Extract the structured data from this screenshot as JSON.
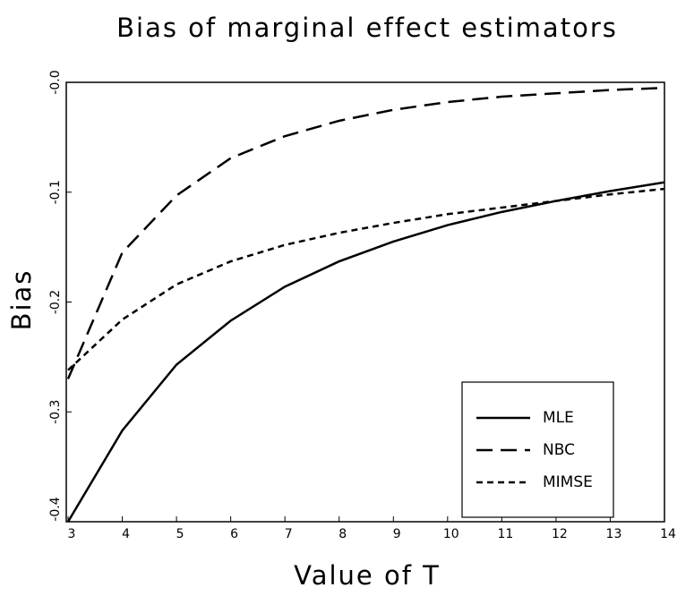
{
  "chart_data": {
    "type": "line",
    "title": "Bias of marginal effect estimators",
    "x_label": "Value of T",
    "y_label": "Bias",
    "x": [
      3,
      4,
      5,
      6,
      7,
      8,
      9,
      10,
      11,
      12,
      13,
      14
    ],
    "series": [
      {
        "name": "MLE",
        "color": "#000000",
        "linestyle": "solid",
        "values": [
          -0.4,
          -0.317,
          -0.257,
          -0.217,
          -0.186,
          -0.163,
          -0.145,
          -0.13,
          -0.118,
          -0.108,
          -0.099,
          -0.091
        ]
      },
      {
        "name": "NBC",
        "color": "#000000",
        "linestyle": "long-dash",
        "values": [
          -0.27,
          -0.155,
          -0.103,
          -0.069,
          -0.049,
          -0.035,
          -0.025,
          -0.018,
          -0.013,
          -0.01,
          -0.007,
          -0.005
        ]
      },
      {
        "name": "MIMSE",
        "color": "#000000",
        "linestyle": "short-dash",
        "values": [
          -0.262,
          -0.216,
          -0.184,
          -0.163,
          -0.148,
          -0.137,
          -0.128,
          -0.12,
          -0.114,
          -0.108,
          -0.102,
          -0.097
        ]
      }
    ],
    "xlim": [
      3,
      14
    ],
    "xticks": [
      3,
      4,
      5,
      6,
      7,
      8,
      9,
      10,
      11,
      12,
      13,
      14
    ],
    "ylim": [
      -0.4,
      0
    ],
    "yticks": [
      -0.4,
      -0.3,
      -0.2,
      -0.1,
      {
        "value": 0,
        "label": "-0.0"
      }
    ],
    "legend": "lower right"
  }
}
